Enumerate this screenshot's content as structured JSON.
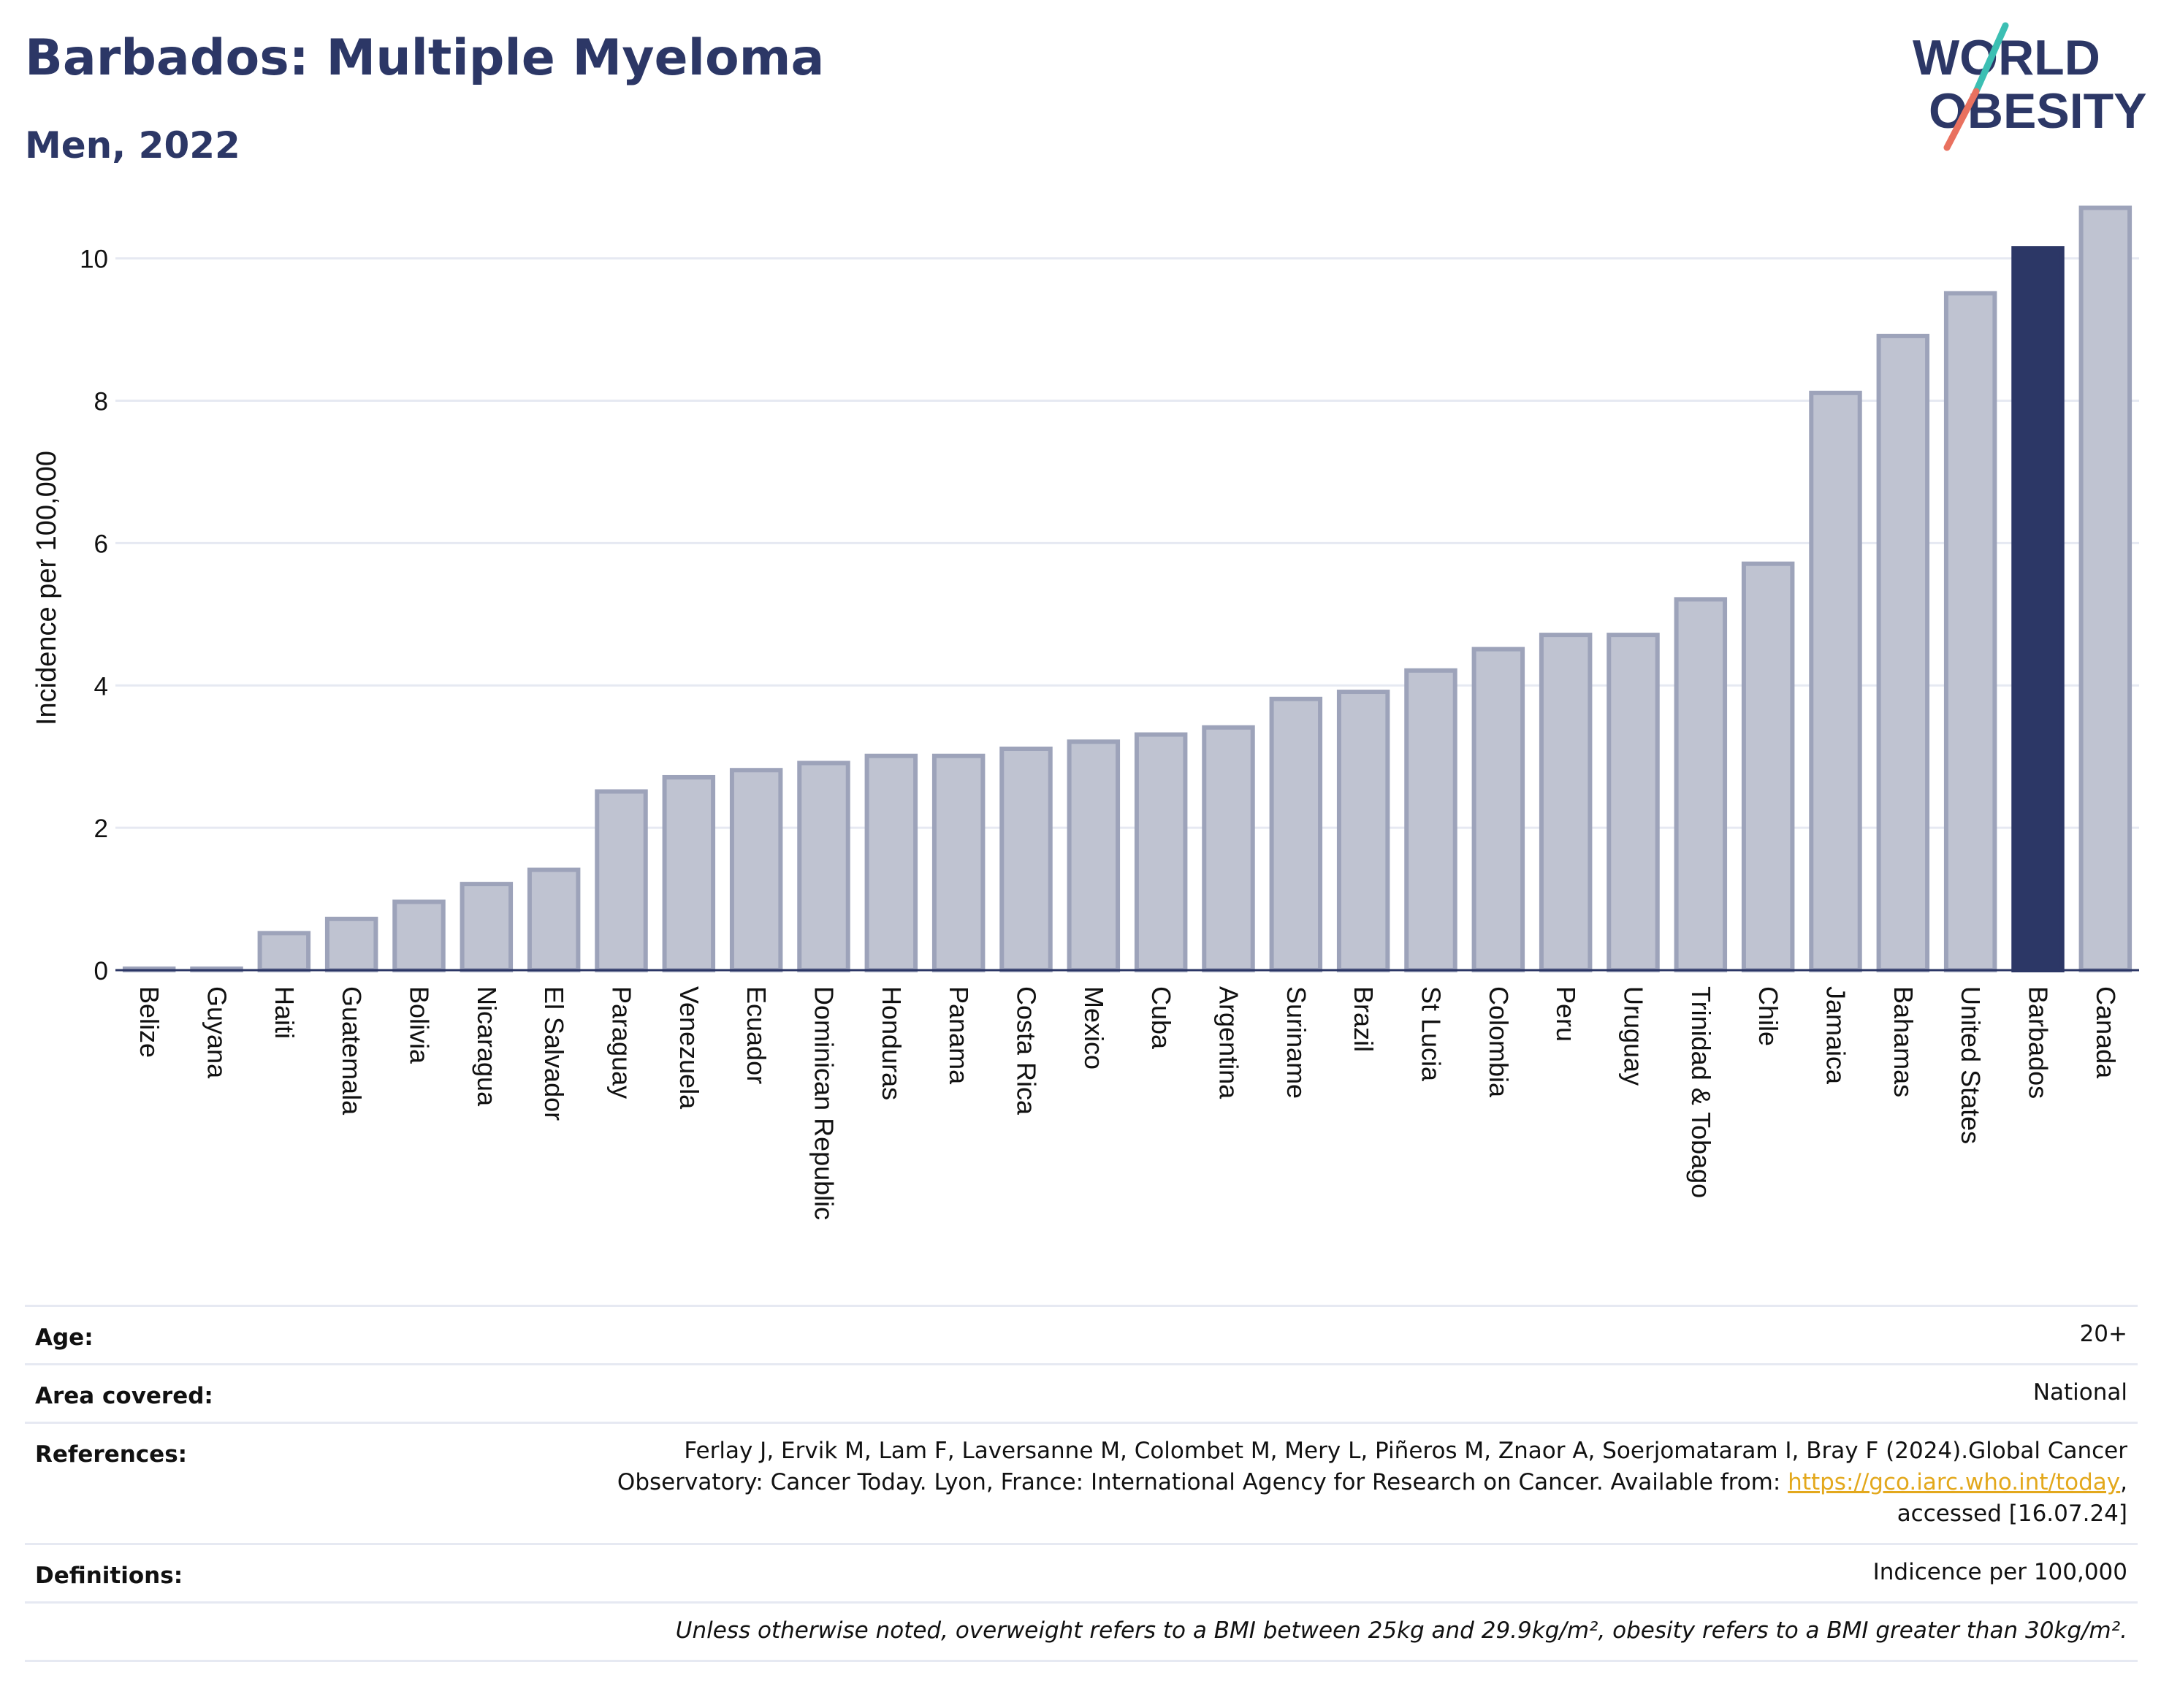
{
  "title": "Barbados: Multiple Myeloma",
  "subtitle": "Men, 2022",
  "logo": {
    "line1": "WORLD",
    "line2": "OBESITY"
  },
  "colors": {
    "title": "#2c3766",
    "highlight_bar": "#2c3766",
    "bar_fill": "#bfc3d1",
    "bar_stroke": "#9da3ba",
    "logo_teal": "#3cbfb3",
    "logo_red": "#e9715f",
    "link": "#e3a81c"
  },
  "chart_data": {
    "type": "bar",
    "title": "Barbados: Multiple Myeloma",
    "subtitle": "Men, 2022",
    "ylabel": "Incidence per 100,000",
    "xlabel": "",
    "ylim": [
      0,
      10.9
    ],
    "yticks": [
      0,
      2,
      4,
      6,
      8,
      10
    ],
    "grid": true,
    "highlight": "Barbados",
    "categories": [
      "Belize",
      "Guyana",
      "Haiti",
      "Guatemala",
      "Bolivia",
      "Nicaragua",
      "El Salvador",
      "Paraguay",
      "Venezuela",
      "Ecuador",
      "Dominican Republic",
      "Honduras",
      "Panama",
      "Costa Rica",
      "Mexico",
      "Cuba",
      "Argentina",
      "Suriname",
      "Brazil",
      "St Lucia",
      "Colombia",
      "Peru",
      "Uruguay",
      "Trinidad & Tobago",
      "Chile",
      "Jamaica",
      "Bahamas",
      "United States",
      "Barbados",
      "Canada"
    ],
    "values": [
      0.02,
      0.02,
      0.52,
      0.72,
      0.96,
      1.21,
      1.41,
      2.51,
      2.71,
      2.81,
      2.91,
      3.01,
      3.01,
      3.11,
      3.21,
      3.31,
      3.41,
      3.81,
      3.91,
      4.21,
      4.51,
      4.71,
      4.71,
      5.21,
      5.71,
      8.11,
      8.91,
      9.51,
      10.14,
      10.71
    ]
  },
  "info": {
    "age_label": "Age:",
    "age_value": "20+",
    "area_label": "Area covered:",
    "area_value": "National",
    "references_label": "References:",
    "references_line1": "Ferlay J, Ervik M, Lam F, Laversanne M, Colombet M, Mery L, Piñeros M, Znaor A, Soerjomataram I, Bray F (2024).Global Cancer",
    "references_line2_pre": "Observatory: Cancer Today. Lyon, France: International Agency for Research on Cancer. Available from: ",
    "references_link": "https://gco.iarc.who.int/today",
    "references_line2_post": ",",
    "references_line3": "accessed [16.07.24]",
    "definitions_label": "Definitions:",
    "definitions_value": "Indicence per 100,000",
    "note": "Unless otherwise noted, overweight refers to a BMI between 25kg and 29.9kg/m², obesity refers to a BMI greater than 30kg/m²."
  }
}
